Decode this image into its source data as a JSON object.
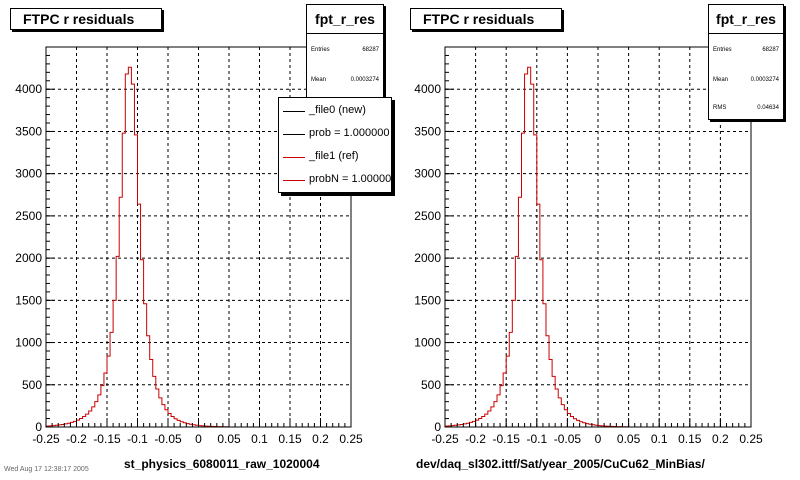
{
  "chart_data": [
    {
      "type": "histogram",
      "title": "FTPC r residuals",
      "xlabel": "st_physics_6080011_raw_1020004",
      "xlim": [
        -0.25,
        0.25
      ],
      "ylim": [
        0,
        4500
      ],
      "xticks": [
        "-0.25",
        "-0.2",
        "-0.15",
        "-0.1",
        "-0.05",
        "0",
        "0.05",
        "0.1",
        "0.15",
        "0.2",
        "0.25"
      ],
      "yticks": [
        "0",
        "500",
        "1000",
        "1500",
        "2000",
        "2500",
        "3000",
        "3500",
        "4000"
      ],
      "grid": true,
      "legend": "top-right",
      "bin_width": 0.005,
      "series": [
        {
          "name": "_file0 (new)",
          "color": "#000000"
        },
        {
          "name": "_file1 (ref)",
          "color": "#cc0000"
        }
      ],
      "counts": [
        10,
        13,
        16,
        20,
        25,
        30,
        37,
        45,
        55,
        67,
        82,
        100,
        124,
        153,
        190,
        238,
        300,
        380,
        490,
        640,
        840,
        1120,
        1500,
        2020,
        2720,
        3480,
        4180,
        4260,
        4060,
        3460,
        2640,
        1980,
        1460,
        1080,
        800,
        600,
        450,
        345,
        265,
        205,
        160,
        125,
        98,
        78,
        62,
        50,
        40,
        32,
        26,
        21,
        17,
        14,
        11,
        9,
        7,
        6,
        5,
        4,
        3,
        3
      ]
    },
    {
      "type": "histogram",
      "title": "FTPC r residuals",
      "xlabel": "dev/daq_sl302.ittf/Sat/year_2005/CuCu62_MinBias/",
      "xlim": [
        -0.25,
        0.25
      ],
      "ylim": [
        0,
        4500
      ],
      "xticks": [
        "-0.25",
        "-0.2",
        "-0.15",
        "-0.1",
        "-0.05",
        "0",
        "0.05",
        "0.1",
        "0.15",
        "0.2",
        "0.25"
      ],
      "yticks": [
        "0",
        "500",
        "1000",
        "1500",
        "2000",
        "2500",
        "3000",
        "3500",
        "4000"
      ],
      "grid": true,
      "bin_width": 0.005,
      "series": [
        {
          "name": "",
          "color": "#cc0000"
        }
      ],
      "counts": [
        10,
        13,
        16,
        20,
        25,
        30,
        37,
        45,
        55,
        67,
        82,
        100,
        124,
        153,
        190,
        238,
        300,
        380,
        490,
        640,
        840,
        1120,
        1500,
        2020,
        2720,
        3480,
        4180,
        4260,
        4060,
        3460,
        2640,
        1980,
        1460,
        1080,
        800,
        600,
        450,
        345,
        265,
        205,
        160,
        125,
        98,
        78,
        62,
        50,
        40,
        32,
        26,
        21,
        17,
        14,
        11,
        9,
        7,
        6,
        5,
        4,
        3,
        3
      ]
    }
  ],
  "left": {
    "title": "FTPC r residuals",
    "stats": {
      "name": "fpt_r_res",
      "rows": [
        {
          "key": "Entries",
          "value": "68287"
        },
        {
          "key": "Mean",
          "value": "0.0003274"
        }
      ]
    },
    "legend": [
      {
        "label": "_file0 (new)",
        "color": "#000000"
      },
      {
        "label": "prob = 1.000000",
        "color": "#000000"
      },
      {
        "label": "_file1 (ref)",
        "color": "#cc0000"
      },
      {
        "label": "probN = 1.000000",
        "color": "#cc0000"
      }
    ],
    "xtitle": "st_physics_6080011_raw_1020004"
  },
  "right": {
    "title": "FTPC r residuals",
    "stats": {
      "name": "fpt_r_res",
      "rows": [
        {
          "key": "Entries",
          "value": "68287"
        },
        {
          "key": "Mean",
          "value": "0.0003274"
        },
        {
          "key": "RMS",
          "value": "0.04634"
        }
      ]
    },
    "xtitle": "dev/daq_sl302.ittf/Sat/year_2005/CuCu62_MinBias/"
  },
  "footer": "Wed Aug 17 12:38:17 2005"
}
